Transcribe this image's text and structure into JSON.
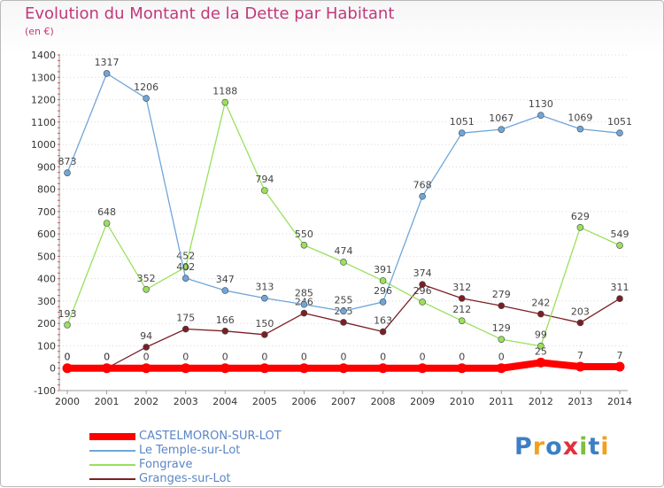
{
  "header": {
    "title": "Evolution du Montant de la Dette par Habitant",
    "unit": "(en €)"
  },
  "logo": {
    "text": "Proxiti",
    "letters": [
      {
        "ch": "P",
        "color": "#3d7fc4"
      },
      {
        "ch": "r",
        "color": "#f0a21c"
      },
      {
        "ch": "o",
        "color": "#3d7fc4"
      },
      {
        "ch": "x",
        "color": "#e2303a"
      },
      {
        "ch": "i",
        "color": "#7fbf3c"
      },
      {
        "ch": "t",
        "color": "#3d7fc4"
      },
      {
        "ch": "i",
        "color": "#f0a21c"
      }
    ]
  },
  "chart_data": {
    "type": "line",
    "title": "Evolution du Montant de la Dette par Habitant",
    "ylabel": "(en €)",
    "xlabel": "",
    "x": [
      2000,
      2001,
      2002,
      2003,
      2004,
      2005,
      2006,
      2007,
      2008,
      2009,
      2010,
      2011,
      2012,
      2013,
      2014
    ],
    "ylim": [
      -100,
      1400
    ],
    "yticks": [
      -100,
      0,
      100,
      200,
      300,
      400,
      500,
      600,
      700,
      800,
      900,
      1000,
      1100,
      1200,
      1300,
      1400
    ],
    "grid": "horizontal dotted",
    "legend": "bottom-left",
    "series": [
      {
        "name": "Granges-sur-Lot",
        "color": "#7b1f24",
        "values": [
          0,
          0,
          94,
          175,
          166,
          150,
          246,
          205,
          163,
          374,
          312,
          279,
          242,
          203,
          311
        ]
      },
      {
        "name": "Fongrave",
        "color": "#99e05d",
        "values": [
          193,
          648,
          352,
          452,
          1188,
          794,
          550,
          474,
          391,
          296,
          212,
          129,
          99,
          629,
          549
        ]
      },
      {
        "name": "Le Temple-sur-Lot",
        "color": "#6fa6d9",
        "values": [
          873,
          1317,
          1206,
          402,
          347,
          313,
          285,
          255,
          296,
          768,
          1051,
          1067,
          1130,
          1069,
          1051
        ]
      },
      {
        "name": "CASTELMORON-SUR-LOT",
        "color": "#ff0000",
        "values": [
          0,
          0,
          0,
          0,
          0,
          0,
          0,
          0,
          0,
          0,
          0,
          0,
          25,
          7,
          7
        ]
      }
    ]
  },
  "legend_items": [
    {
      "name": "CASTELMORON-SUR-LOT",
      "color": "#ff0000"
    },
    {
      "name": "Le Temple-sur-Lot",
      "color": "#6fa6d9"
    },
    {
      "name": "Fongrave",
      "color": "#99e05d"
    },
    {
      "name": "Granges-sur-Lot",
      "color": "#7b1f24"
    }
  ]
}
